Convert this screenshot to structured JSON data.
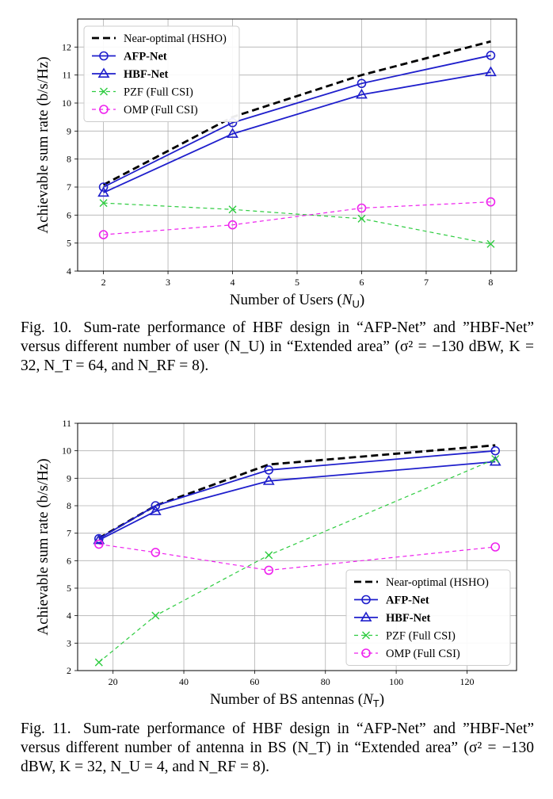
{
  "figures": [
    {
      "caption": {
        "label": "Fig. 10.",
        "text": "Sum-rate performance of HBF design in “AFP-Net” and ”HBF-Net” versus different number of user (N_U) in “Extended area” (σ² = −130 dBW, K = 32, N_T = 64, and N_RF = 8)."
      }
    },
    {
      "caption": {
        "label": "Fig. 11.",
        "text": "Sum-rate performance of HBF design in “AFP-Net” and ”HBF-Net” versus different number of antenna in BS (N_T) in “Extended area” (σ² = −130 dBW, K = 32, N_U = 4, and N_RF = 8)."
      }
    }
  ],
  "chart_data": [
    {
      "type": "line",
      "xlabel": "Number of Users (N_U)",
      "ylabel": "Achievable sum rate (b/s/Hz)",
      "xlim": [
        1.6,
        8.4
      ],
      "ylim": [
        4,
        13
      ],
      "xticks": [
        2,
        3,
        4,
        5,
        6,
        7,
        8
      ],
      "yticks": [
        4,
        5,
        6,
        7,
        8,
        9,
        10,
        11,
        12
      ],
      "grid": true,
      "legend_position": "top-left",
      "series": [
        {
          "name": "Near-optimal (HSHO)",
          "x": [
            2,
            4,
            6,
            8
          ],
          "values": [
            7.08,
            9.5,
            11.0,
            12.2
          ],
          "color": "#000000",
          "style": "dashed",
          "marker": "none",
          "bold": false
        },
        {
          "name": "AFP-Net",
          "x": [
            2,
            4,
            6,
            8
          ],
          "values": [
            7.0,
            9.3,
            10.7,
            11.7
          ],
          "color": "#1f1fcc",
          "style": "solid",
          "marker": "circle",
          "bold": true
        },
        {
          "name": "HBF-Net",
          "x": [
            2,
            4,
            6,
            8
          ],
          "values": [
            6.8,
            8.9,
            10.3,
            11.1
          ],
          "color": "#1f1fcc",
          "style": "solid",
          "marker": "triangle",
          "bold": true
        },
        {
          "name": "PZF (Full CSI)",
          "x": [
            2,
            4,
            6,
            8
          ],
          "values": [
            6.43,
            6.2,
            5.87,
            4.97
          ],
          "color": "#2ecc40",
          "style": "dashed",
          "marker": "x",
          "bold": false
        },
        {
          "name": "OMP (Full CSI)",
          "x": [
            2,
            4,
            6,
            8
          ],
          "values": [
            5.3,
            5.65,
            6.25,
            6.47
          ],
          "color": "#ee22ee",
          "style": "dashed",
          "marker": "circle",
          "bold": false
        }
      ]
    },
    {
      "type": "line",
      "xlabel": "Number of BS antennas (N_T)",
      "ylabel": "Achievable sum rate (b/s/Hz)",
      "xlim": [
        10,
        134
      ],
      "ylim": [
        2,
        11
      ],
      "xticks": [
        20,
        40,
        60,
        80,
        100,
        120
      ],
      "yticks": [
        2,
        3,
        4,
        5,
        6,
        7,
        8,
        9,
        10,
        11
      ],
      "grid": true,
      "legend_position": "bottom-right",
      "series": [
        {
          "name": "Near-optimal (HSHO)",
          "x": [
            16,
            32,
            64,
            128
          ],
          "values": [
            6.82,
            8.0,
            9.5,
            10.2
          ],
          "color": "#000000",
          "style": "dashed",
          "marker": "none",
          "bold": false
        },
        {
          "name": "AFP-Net",
          "x": [
            16,
            32,
            64,
            128
          ],
          "values": [
            6.8,
            8.0,
            9.3,
            10.0
          ],
          "color": "#1f1fcc",
          "style": "solid",
          "marker": "circle",
          "bold": true
        },
        {
          "name": "HBF-Net",
          "x": [
            16,
            32,
            64,
            128
          ],
          "values": [
            6.75,
            7.8,
            8.9,
            9.6
          ],
          "color": "#1f1fcc",
          "style": "solid",
          "marker": "triangle",
          "bold": true
        },
        {
          "name": "PZF (Full CSI)",
          "x": [
            16,
            32,
            64,
            128
          ],
          "values": [
            2.3,
            4.0,
            6.2,
            9.7
          ],
          "color": "#2ecc40",
          "style": "dashed",
          "marker": "x",
          "bold": false
        },
        {
          "name": "OMP (Full CSI)",
          "x": [
            16,
            32,
            64,
            128
          ],
          "values": [
            6.6,
            6.3,
            5.65,
            6.5
          ],
          "color": "#ee22ee",
          "style": "dashed",
          "marker": "circle",
          "bold": false
        }
      ]
    }
  ]
}
